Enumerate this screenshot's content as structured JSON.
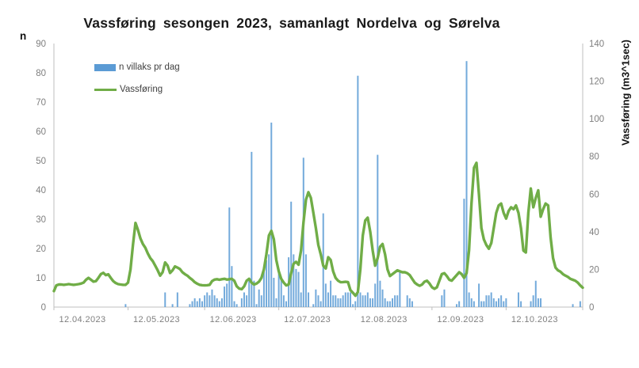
{
  "chart_data": {
    "type": "combo",
    "title": "Vassføring sesongen 2023, samanlagt Nordelva og Sørelva",
    "left_axis": {
      "label": "n",
      "min": 0,
      "max": 90,
      "tick_step": 10
    },
    "right_axis": {
      "label": "Vassføring (m3^1sec)",
      "min": 0,
      "max": 140,
      "tick_step": 20
    },
    "x_axis": {
      "tick_labels": [
        "12.04.2023",
        "12.05.2023",
        "12.06.2023",
        "12.07.2023",
        "12.08.2023",
        "12.09.2023",
        "12.10.2023"
      ],
      "tick_days": [
        0,
        30,
        61,
        91,
        122,
        153,
        183
      ],
      "total_days": 214
    },
    "legend": [
      {
        "label": "n villaks pr dag",
        "color": "#5B9BD5",
        "type": "bar"
      },
      {
        "label": "Vassføring",
        "color": "#70AD47",
        "type": "line"
      }
    ],
    "colors": {
      "axis_line": "#BFBFBF",
      "tick_text": "#7F7F7F",
      "bar": "#5B9BD5",
      "line": "#70AD47"
    },
    "series": [
      {
        "name": "n villaks pr dag",
        "type": "bar",
        "axis": "left",
        "color": "#5B9BD5",
        "points_by_day": {
          "29": 1,
          "45": 5,
          "48": 1,
          "50": 5,
          "55": 1,
          "56": 2,
          "57": 3,
          "58": 2,
          "59": 3,
          "60": 2,
          "61": 4,
          "62": 5,
          "63": 4,
          "64": 6,
          "65": 4,
          "66": 3,
          "67": 2,
          "68": 3,
          "69": 7,
          "70": 8,
          "71": 34,
          "72": 14,
          "73": 2,
          "74": 1,
          "76": 3,
          "77": 5,
          "78": 4,
          "79": 10,
          "80": 53,
          "81": 9,
          "82": 1,
          "83": 6,
          "84": 4,
          "85": 13,
          "86": 16,
          "87": 18,
          "88": 63,
          "89": 10,
          "90": 3,
          "91": 13,
          "92": 10,
          "93": 4,
          "94": 2,
          "95": 17,
          "96": 36,
          "97": 18,
          "98": 13,
          "99": 12,
          "100": 5,
          "101": 51,
          "102": 18,
          "103": 5,
          "105": 1,
          "106": 6,
          "107": 4,
          "108": 2,
          "109": 32,
          "110": 8,
          "111": 5,
          "112": 9,
          "113": 4,
          "114": 4,
          "115": 3,
          "116": 3,
          "117": 4,
          "118": 5,
          "119": 5,
          "120": 5,
          "121": 1,
          "122": 2,
          "123": 79,
          "124": 5,
          "125": 4,
          "126": 4,
          "127": 5,
          "128": 3,
          "129": 3,
          "130": 8,
          "131": 52,
          "132": 9,
          "133": 6,
          "134": 3,
          "135": 2,
          "136": 2,
          "137": 3,
          "138": 4,
          "139": 4,
          "140": 12,
          "143": 4,
          "144": 3,
          "145": 2,
          "157": 4,
          "158": 6,
          "163": 1,
          "164": 2,
          "166": 37,
          "167": 84,
          "168": 5,
          "169": 3,
          "170": 2,
          "172": 8,
          "173": 2,
          "174": 2,
          "175": 4,
          "176": 4,
          "177": 5,
          "178": 3,
          "179": 2,
          "180": 3,
          "181": 4,
          "182": 2,
          "183": 3,
          "188": 5,
          "189": 2,
          "193": 2,
          "194": 4,
          "195": 9,
          "196": 3,
          "197": 3,
          "210": 1,
          "213": 2
        }
      },
      {
        "name": "Vassføring",
        "type": "line",
        "axis": "right",
        "color": "#70AD47",
        "daily_values": [
          8.5,
          11.5,
          12,
          12,
          11.8,
          12,
          12.2,
          12,
          11.8,
          12,
          12.2,
          12.5,
          13,
          14.5,
          15.5,
          14.5,
          13.5,
          13.8,
          15.5,
          17.5,
          18.2,
          17,
          17.4,
          15.5,
          13.8,
          12.8,
          12.2,
          12,
          11.8,
          11.8,
          13,
          20,
          33,
          44.7,
          41,
          36.5,
          33.5,
          31.5,
          28.5,
          26,
          24.4,
          22,
          19.5,
          16.7,
          18.5,
          23.7,
          22,
          18.1,
          19.5,
          21.6,
          21,
          20.2,
          18.5,
          17.5,
          16.7,
          15.5,
          14.5,
          13.2,
          12.4,
          11.8,
          11.6,
          11.5,
          11.6,
          11.8,
          13.8,
          14.6,
          14.8,
          14.5,
          14.8,
          15,
          14.6,
          14.8,
          15,
          14,
          11,
          9.8,
          9.5,
          11,
          14,
          15,
          13,
          12,
          12.5,
          13.5,
          15.5,
          20,
          28,
          38,
          40.5,
          36,
          25,
          19,
          15,
          13,
          11.5,
          12,
          18,
          23,
          24,
          22.5,
          30,
          45,
          57,
          61,
          58,
          50,
          42,
          33,
          28,
          22,
          20.5,
          26.5,
          25,
          19,
          15.5,
          14,
          13.2,
          13.3,
          13.4,
          13.3,
          9,
          7.6,
          6,
          8,
          20,
          38,
          46,
          47.5,
          40,
          30,
          22,
          26,
          32,
          33.5,
          28,
          20,
          16.5,
          17.5,
          18.5,
          19.5,
          19,
          18.5,
          18.5,
          18,
          17,
          15,
          13,
          12,
          11.3,
          12,
          13.5,
          14,
          12.5,
          10.5,
          9.7,
          10.5,
          14,
          17.5,
          18,
          16.5,
          14.5,
          14,
          15.5,
          17,
          18.5,
          17.5,
          15.5,
          18,
          30,
          55,
          74,
          76.6,
          60,
          42,
          36,
          33,
          31,
          34,
          42,
          50,
          54,
          55,
          50,
          47,
          51,
          53,
          52,
          54,
          50,
          42,
          30,
          29,
          50,
          63,
          53,
          58,
          62,
          48,
          52,
          55,
          54,
          37,
          26,
          21,
          19.5,
          18.8,
          17.5,
          16.7,
          16,
          15,
          14.5,
          14,
          13,
          11.5,
          10.3
        ]
      }
    ]
  }
}
